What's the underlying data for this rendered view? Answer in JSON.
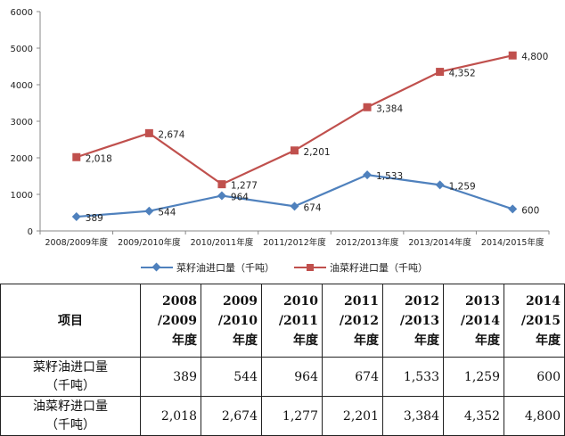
{
  "chart_data": {
    "type": "line",
    "categories": [
      "2008/2009年度",
      "2009/2010年度",
      "2010/2011年度",
      "2011/2012年度",
      "2012/2013年度",
      "2013/2014年度",
      "2014/2015年度"
    ],
    "series": [
      {
        "name": "菜籽油进口量（千吨）",
        "values": [
          389,
          544,
          964,
          674,
          1533,
          1259,
          600
        ],
        "labels": [
          "389",
          "544",
          "964",
          "674",
          "1,533",
          "1,259",
          "600"
        ],
        "color": "#4f81bd",
        "marker": "diamond"
      },
      {
        "name": "油菜籽进口量（千吨）",
        "values": [
          2018,
          2674,
          1277,
          2201,
          3384,
          4352,
          4800
        ],
        "labels": [
          "2,018",
          "2,674",
          "1,277",
          "2,201",
          "3,384",
          "4,352",
          "4,800"
        ],
        "color": "#c0504d",
        "marker": "square"
      }
    ],
    "ylim": [
      0,
      6000
    ],
    "yticks": [
      "0",
      "1000",
      "2000",
      "3000",
      "4000",
      "5000",
      "6000"
    ],
    "grid": false,
    "legend": "bottom"
  },
  "table": {
    "header_item": "项目",
    "header_years": [
      [
        "2008",
        "/2009",
        "年度"
      ],
      [
        "2009",
        "/2010",
        "年度"
      ],
      [
        "2010",
        "/2011",
        "年度"
      ],
      [
        "2011",
        "/2012",
        "年度"
      ],
      [
        "2012",
        "/2013",
        "年度"
      ],
      [
        "2013",
        "/2014",
        "年度"
      ],
      [
        "2014",
        "/2015",
        "年度"
      ]
    ],
    "rows": [
      {
        "label": [
          "菜籽油进口量",
          "（千吨）"
        ],
        "values": [
          "389",
          "544",
          "964",
          "674",
          "1,533",
          "1,259",
          "600"
        ]
      },
      {
        "label": [
          "油菜籽进口量",
          "（千吨）"
        ],
        "values": [
          "2,018",
          "2,674",
          "1,277",
          "2,201",
          "3,384",
          "4,352",
          "4,800"
        ]
      }
    ]
  }
}
